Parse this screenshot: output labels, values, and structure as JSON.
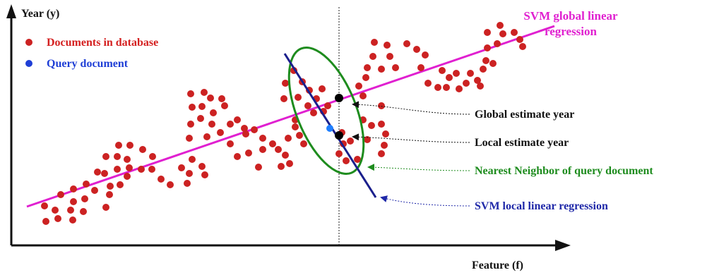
{
  "axes": {
    "y_label": "Year (y)",
    "x_label": "Feature (f)"
  },
  "legend": {
    "documents": {
      "label": "Documents in database",
      "color": "#cc2222"
    },
    "query": {
      "label": "Query document",
      "color": "#1f3fd6"
    }
  },
  "annotations": {
    "global_regression": {
      "line1": "SVM global linear",
      "line2": "regression",
      "color": "#e020d0"
    },
    "global_estimate": {
      "label": "Global estimate year",
      "color": "#111111"
    },
    "local_estimate": {
      "label": "Local  estimate year",
      "color": "#111111"
    },
    "nearest_neighbor": {
      "label": "Nearest Neighbor of query document",
      "color": "#1e8c1e"
    },
    "local_regression": {
      "label": "SVM local linear regression",
      "color": "#1f28a8"
    }
  },
  "colors": {
    "axis": "#111111",
    "dot": "#cc2222",
    "query_dot": "#1f7fff",
    "global_line": "#e020d0",
    "local_line": "#1a1f8c",
    "neighbor_ellipse": "#1e8c1e",
    "estimate_dot": "#000000"
  }
}
